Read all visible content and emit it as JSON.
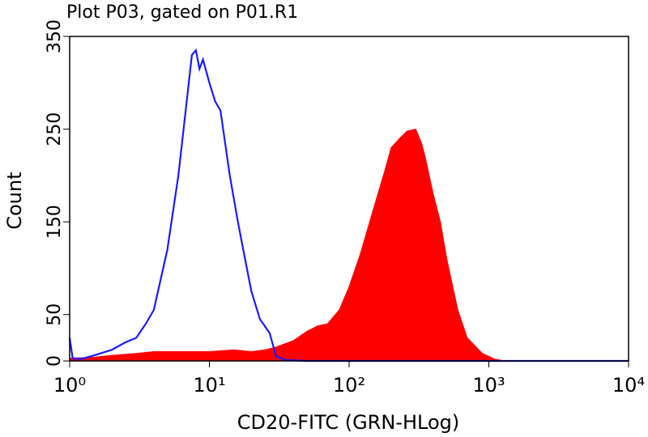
{
  "chart_data": {
    "type": "histogram-overlay",
    "title": "Plot P03, gated on P01.R1",
    "x_label": "CD20-FITC (GRN-HLog)",
    "y_label": "Count",
    "log_x": true,
    "xlim": [
      1,
      10000
    ],
    "xticks": [
      {
        "value": 1,
        "label": "10⁰"
      },
      {
        "value": 10,
        "label": "10¹"
      },
      {
        "value": 100,
        "label": "10²"
      },
      {
        "value": 1000,
        "label": "10³"
      },
      {
        "value": 10000,
        "label": "10⁴"
      }
    ],
    "ylim": [
      0,
      350
    ],
    "yticks": [
      0,
      50,
      150,
      250,
      350
    ],
    "series": [
      {
        "color": "#ff0000",
        "fill": true,
        "x": [
          1,
          1.5,
          2,
          3,
          4,
          6,
          10,
          15,
          20,
          25,
          30,
          40,
          50,
          60,
          70,
          85,
          100,
          120,
          150,
          180,
          200,
          230,
          260,
          300,
          330,
          350,
          400,
          450,
          500,
          600,
          700,
          900,
          1100,
          1300,
          10000
        ],
        "values": [
          3,
          4,
          6,
          8,
          10,
          10,
          10,
          12,
          10,
          12,
          15,
          22,
          32,
          38,
          40,
          55,
          80,
          115,
          165,
          205,
          230,
          240,
          248,
          250,
          235,
          220,
          180,
          150,
          110,
          55,
          25,
          8,
          2,
          0,
          0
        ]
      },
      {
        "color": "#1a1aff",
        "fill": false,
        "x": [
          1,
          1.05,
          1.2,
          1.5,
          2,
          2.5,
          3,
          3.5,
          4,
          5,
          6,
          7,
          7.5,
          8,
          8.5,
          9,
          10,
          11,
          12,
          14,
          16,
          18,
          20,
          23,
          27,
          30,
          35,
          50,
          10000
        ],
        "values": [
          25,
          3,
          2,
          6,
          12,
          20,
          25,
          40,
          55,
          120,
          200,
          290,
          330,
          335,
          315,
          325,
          300,
          280,
          270,
          200,
          150,
          110,
          75,
          45,
          30,
          5,
          1,
          0,
          0
        ]
      }
    ]
  }
}
